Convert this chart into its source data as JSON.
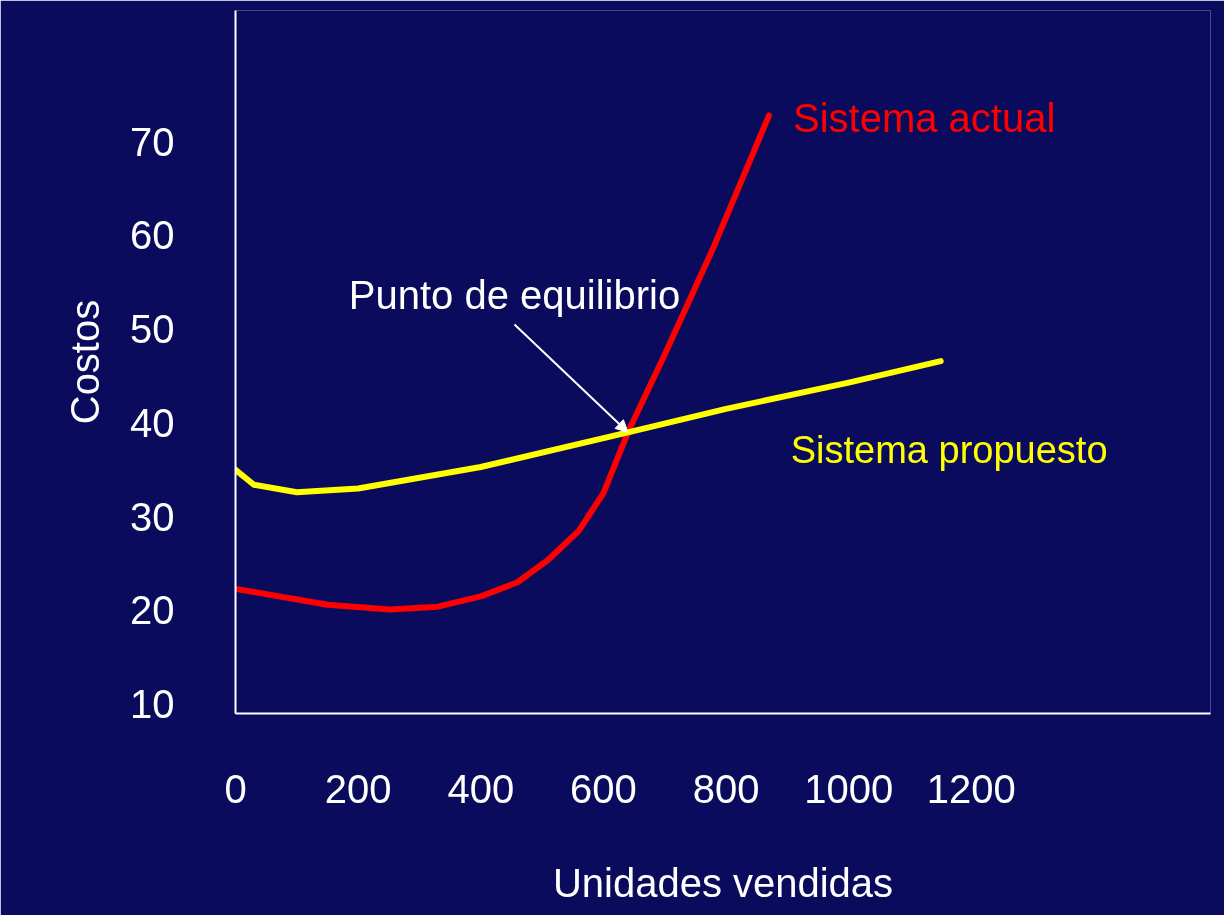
{
  "chart_data": {
    "type": "line",
    "xlabel": "Unidades vendidas",
    "ylabel": "Costos",
    "xlim": [
      0,
      1590
    ],
    "ylim": [
      9,
      84
    ],
    "xticks": [
      0,
      200,
      400,
      600,
      800,
      1000,
      1200
    ],
    "yticks": [
      10,
      20,
      30,
      40,
      50,
      60,
      70
    ],
    "grid": false,
    "legend": false,
    "marker": "none",
    "line_style": "solid",
    "annotations": [
      {
        "text": "Punto de equilibrio",
        "x": 640,
        "y": 39
      }
    ],
    "series": [
      {
        "name": "Sistema actual",
        "color": "#ff0000",
        "x": [
          0,
          150,
          252,
          330,
          400,
          460,
          510,
          560,
          600,
          640,
          700,
          780,
          870
        ],
        "values": [
          22.3,
          20.6,
          20.1,
          20.4,
          21.5,
          23,
          25.4,
          28.5,
          32.5,
          39,
          47.3,
          58.8,
          72.8
        ]
      },
      {
        "name": "Sistema propuesto",
        "color": "#ffff00",
        "x": [
          0,
          30,
          100,
          200,
          400,
          640,
          800,
          1000,
          1150
        ],
        "values": [
          35,
          33.4,
          32.6,
          33,
          35.3,
          39,
          41.5,
          44.3,
          46.6
        ]
      }
    ]
  }
}
